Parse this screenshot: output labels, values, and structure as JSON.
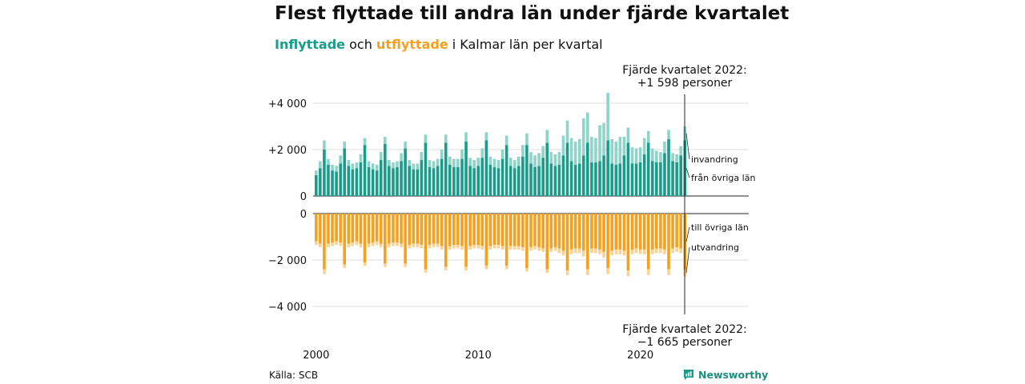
{
  "header": {
    "title": "Flest flyttade till andra län under fjärde kvartalet",
    "subtitle_in": "Inflyttade",
    "subtitle_mid": " och ",
    "subtitle_out": "utflyttade",
    "subtitle_rest": " i Kalmar län per kvartal"
  },
  "footer": {
    "source": "Källa: SCB",
    "brand": "Newsworthy"
  },
  "colors": {
    "in_domestic": "#1a9c8a",
    "in_immigration": "#8fd4c9",
    "out_domestic": "#f5a01e",
    "out_emigration": "#fbd291",
    "gridline": "#dddddd",
    "zero_line": "#222222"
  },
  "chart_data": {
    "type": "bar",
    "stacked": true,
    "mirrored": true,
    "x_start": "2000 Q1",
    "x_end": "2022 Q4",
    "xticks": [
      "2000",
      "2010",
      "2020"
    ],
    "panels": [
      {
        "name": "inflyttade",
        "ylim": [
          0,
          4500
        ],
        "yticks": [
          0,
          2000,
          4000
        ],
        "ytick_labels": [
          "0",
          "+2 000",
          "+4 000"
        ],
        "gridlines": true,
        "legend_labels": [
          "invandring",
          "från övriga län"
        ],
        "series": [
          {
            "name": "från övriga län",
            "values": [
              900,
              1200,
              2000,
              1350,
              1100,
              1050,
              1400,
              2050,
              1300,
              1150,
              1200,
              1450,
              2200,
              1250,
              1150,
              1100,
              1550,
              2250,
              1300,
              1200,
              1250,
              1500,
              2050,
              1300,
              1150,
              1150,
              1550,
              2300,
              1250,
              1200,
              1300,
              1600,
              2300,
              1350,
              1250,
              1250,
              1600,
              2350,
              1300,
              1200,
              1300,
              1650,
              2400,
              1350,
              1250,
              1200,
              1600,
              2200,
              1300,
              1200,
              1300,
              1700,
              2200,
              1400,
              1250,
              1300,
              1650,
              2300,
              1400,
              1300,
              1350,
              1750,
              2300,
              1500,
              1350,
              1400,
              1750,
              2300,
              1450,
              1450,
              1500,
              1750,
              2400,
              1400,
              1350,
              1400,
              1750,
              2300,
              1400,
              1400,
              1450,
              1800,
              2300,
              1500,
              1450,
              1450,
              1850,
              2450,
              1500,
              1450,
              1750,
              2400
            ]
          },
          {
            "name": "invandring",
            "values": [
              200,
              300,
              400,
              250,
              250,
              250,
              350,
              300,
              250,
              250,
              250,
              350,
              300,
              250,
              250,
              250,
              350,
              300,
              250,
              250,
              250,
              350,
              300,
              250,
              250,
              250,
              350,
              350,
              300,
              300,
              300,
              400,
              350,
              350,
              350,
              350,
              400,
              400,
              350,
              350,
              350,
              400,
              350,
              350,
              350,
              350,
              400,
              400,
              350,
              350,
              400,
              500,
              500,
              500,
              500,
              550,
              500,
              550,
              500,
              500,
              550,
              850,
              950,
              1000,
              1000,
              1050,
              1600,
              1300,
              1100,
              1050,
              1550,
              1400,
              2050,
              1050,
              1000,
              1150,
              800,
              650,
              700,
              650,
              650,
              700,
              500,
              550,
              500,
              450,
              500,
              400,
              350,
              350,
              400,
              600
            ]
          }
        ]
      },
      {
        "name": "utflyttade",
        "ylim": [
          -4500,
          0
        ],
        "yticks": [
          0,
          -2000,
          -4000
        ],
        "ytick_labels": [
          "0",
          "−2 000",
          "−4 000"
        ],
        "gridlines": true,
        "legend_labels": [
          "till övriga län",
          "utvandring"
        ],
        "series": [
          {
            "name": "till övriga län",
            "values": [
              -1200,
              -1300,
              -2400,
              -1300,
              -1250,
              -1200,
              -1250,
              -2200,
              -1300,
              -1250,
              -1200,
              -1300,
              -2100,
              -1300,
              -1250,
              -1200,
              -1300,
              -2150,
              -1300,
              -1250,
              -1250,
              -1300,
              -2150,
              -1350,
              -1300,
              -1300,
              -1350,
              -2400,
              -1350,
              -1300,
              -1300,
              -1400,
              -2300,
              -1400,
              -1350,
              -1350,
              -1400,
              -2300,
              -1400,
              -1350,
              -1350,
              -1400,
              -2250,
              -1400,
              -1350,
              -1350,
              -1400,
              -2250,
              -1400,
              -1400,
              -1400,
              -1450,
              -2350,
              -1450,
              -1400,
              -1450,
              -1500,
              -2400,
              -1500,
              -1450,
              -1500,
              -1600,
              -2450,
              -1550,
              -1500,
              -1500,
              -1600,
              -2400,
              -1500,
              -1500,
              -1550,
              -1650,
              -2350,
              -1600,
              -1550,
              -1550,
              -1600,
              -2450,
              -1550,
              -1500,
              -1550,
              -1550,
              -2400,
              -1550,
              -1500,
              -1500,
              -1550,
              -2400,
              -1500,
              -1450,
              -1500,
              -2400
            ]
          },
          {
            "name": "utvandring",
            "values": [
              -150,
              -150,
              -200,
              -150,
              -150,
              -150,
              -150,
              -150,
              -150,
              -150,
              -150,
              -150,
              -150,
              -150,
              -150,
              -150,
              -150,
              -150,
              -150,
              -150,
              -150,
              -150,
              -150,
              -150,
              -150,
              -150,
              -150,
              -150,
              -150,
              -150,
              -150,
              -150,
              -150,
              -150,
              -150,
              -150,
              -150,
              -150,
              -150,
              -150,
              -150,
              -150,
              -150,
              -150,
              -150,
              -150,
              -150,
              -150,
              -150,
              -150,
              -150,
              -150,
              -150,
              -150,
              -150,
              -150,
              -150,
              -150,
              -150,
              -150,
              -200,
              -200,
              -200,
              -200,
              -200,
              -200,
              -250,
              -250,
              -200,
              -200,
              -200,
              -250,
              -250,
              -200,
              -200,
              -200,
              -200,
              -250,
              -200,
              -200,
              -200,
              -200,
              -250,
              -200,
              -200,
              -200,
              -200,
              -250,
              -200,
              -200,
              -200,
              -300
            ]
          }
        ]
      }
    ],
    "annotations": [
      {
        "line1": "Fjärde kvartalet 2022:",
        "line2": "+1 598 personer",
        "panel": "inflyttade"
      },
      {
        "line1": "Fjärde kvartalet 2022:",
        "line2": "−1 665 personer",
        "panel": "utflyttade"
      }
    ]
  }
}
